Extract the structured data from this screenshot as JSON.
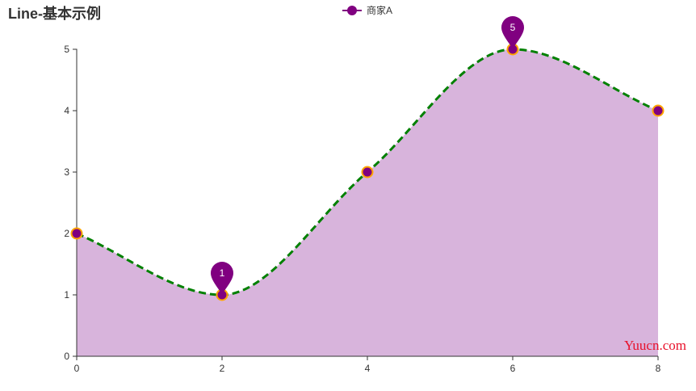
{
  "page": {
    "title": "Line-基本示例",
    "watermark": "Yuucn.com"
  },
  "chart_data": {
    "type": "line",
    "title": "Line-基本示例",
    "xlabel": "",
    "ylabel": "",
    "x": [
      0,
      2,
      4,
      6,
      8
    ],
    "xticks": [
      0,
      2,
      4,
      6,
      8
    ],
    "yticks": [
      0,
      1,
      2,
      3,
      4,
      5
    ],
    "xlim": [
      0,
      8
    ],
    "ylim": [
      0,
      5
    ],
    "smooth": true,
    "area_fill": true,
    "grid": false,
    "legend_position": "top-center",
    "series": [
      {
        "name": "商家A",
        "values": [
          2,
          1,
          3,
          5,
          4
        ]
      }
    ],
    "markpoints": [
      {
        "label": "1",
        "x": 2,
        "y": 1
      },
      {
        "label": "5",
        "x": 6,
        "y": 5
      }
    ],
    "colors": {
      "line": "#008000",
      "area": "#d8b4dc",
      "marker_fill": "#800080",
      "marker_border": "#ffa500",
      "markpoint": "#800080",
      "axis": "#333333"
    }
  }
}
